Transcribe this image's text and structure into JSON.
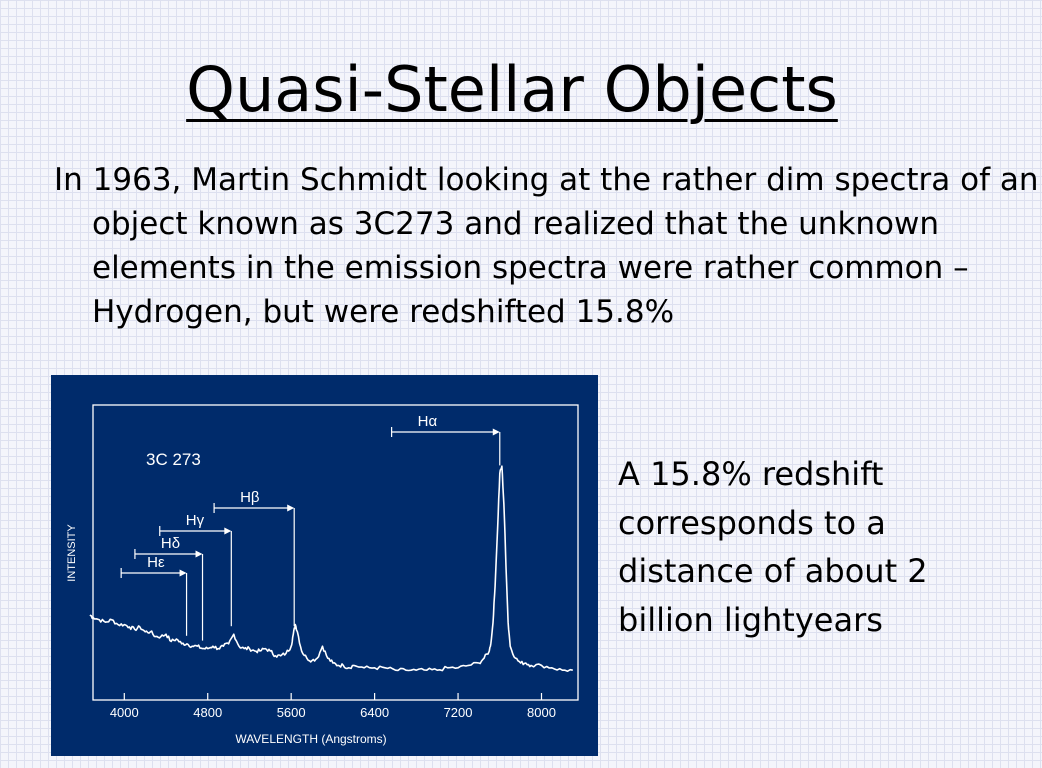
{
  "slide": {
    "title": "Quasi-Stellar Objects",
    "paragraph": "In 1963, Martin Schmidt looking at the rather dim spectra of an object known as 3C273 and realized that the unknown elements in the emission spectra were rather common – Hydrogen, but were redshifted 15.8%",
    "side_note": "A 15.8% redshift corresponds to a distance of about 2 billion lightyears"
  },
  "colors": {
    "chart_background": "#002b6b",
    "chart_foreground": "#ffffff"
  },
  "chart_data": {
    "type": "line",
    "object_label": "3C 273",
    "xlabel": "WAVELENGTH (Angstroms)",
    "ylabel": "INTENSITY",
    "xlim": [
      3700,
      8350
    ],
    "xticks": [
      4000,
      4800,
      5600,
      6400,
      7200,
      8000
    ],
    "xtick_labels": [
      "4000",
      "4800",
      "5600",
      "6400",
      "7200",
      "8000"
    ],
    "ylim": [
      0,
      100
    ],
    "series": [
      {
        "x": [
          3670,
          3700,
          3760,
          3820,
          3880,
          3940,
          4000,
          4050,
          4100,
          4150,
          4200,
          4250,
          4300,
          4350,
          4400,
          4450,
          4500,
          4550,
          4600,
          4650,
          4700,
          4750,
          4800,
          4850,
          4900,
          4950,
          5000,
          5050,
          5100,
          5150,
          5200,
          5250,
          5300,
          5350,
          5400,
          5450,
          5500,
          5550,
          5600,
          5620,
          5640,
          5660,
          5700,
          5750,
          5800,
          5850,
          5900,
          5950,
          6000,
          6050,
          6100,
          6150,
          6200,
          6300,
          6400,
          6500,
          6600,
          6700,
          6800,
          6900,
          7000,
          7100,
          7200,
          7300,
          7400,
          7450,
          7500,
          7520,
          7540,
          7560,
          7580,
          7600,
          7620,
          7640,
          7660,
          7680,
          7700,
          7750,
          7800,
          7850,
          7900,
          8000,
          8100,
          8200,
          8300
        ],
        "y": [
          25,
          24,
          23,
          22,
          23,
          21,
          21,
          20,
          19,
          20,
          18,
          18,
          16,
          16,
          17,
          14,
          15,
          13,
          13,
          12,
          12,
          11,
          11,
          12,
          11,
          12,
          13,
          17,
          12,
          11,
          11,
          10,
          10,
          11,
          10,
          8,
          8,
          9,
          12,
          17,
          21,
          18,
          10,
          7,
          6,
          7,
          12,
          7,
          5,
          4,
          4,
          3,
          4,
          3,
          3,
          3,
          2,
          2,
          2,
          2,
          2,
          3,
          3,
          4,
          5,
          7,
          10,
          15,
          25,
          42,
          62,
          84,
          87,
          71,
          45,
          22,
          12,
          7,
          5,
          5,
          4,
          4,
          3,
          2,
          2
        ]
      }
    ],
    "annotations": [
      {
        "label": "Hα",
        "rest": 6563,
        "observed": 7600
      },
      {
        "label": "Hβ",
        "rest": 4861,
        "observed": 5629
      },
      {
        "label": "Hγ",
        "rest": 4340,
        "observed": 5026
      },
      {
        "label": "Hδ",
        "rest": 4102,
        "observed": 4750
      },
      {
        "label": "Hε",
        "rest": 3970,
        "observed": 4597
      }
    ]
  }
}
